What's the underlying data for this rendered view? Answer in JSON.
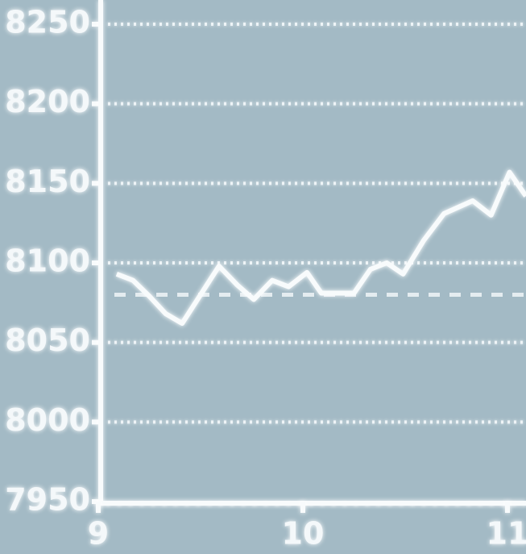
{
  "chart_data": {
    "type": "line",
    "x": [
      9.09,
      9.17,
      9.25,
      9.33,
      9.41,
      9.48,
      9.59,
      9.68,
      9.76,
      9.85,
      9.93,
      10.02,
      10.09,
      10.25,
      10.33,
      10.41,
      10.49,
      10.59,
      10.69,
      10.83,
      10.92,
      11.01,
      11.09
    ],
    "series": [
      {
        "color": "#f8fbfc",
        "values": [
          8093,
          8089,
          8079,
          8068,
          8062,
          8076,
          8098,
          8086,
          8077,
          8089,
          8085,
          8094,
          8081,
          8081,
          8096,
          8100,
          8093,
          8114,
          8131,
          8139,
          8130,
          8157,
          8142
        ]
      }
    ],
    "hline": 8080,
    "xlim": [
      9,
      11.1
    ],
    "xticks": [
      9,
      10,
      11
    ],
    "ylim": [
      7950,
      8250
    ],
    "yticks": [
      7950,
      8000,
      8050,
      8100,
      8150,
      8200,
      8250
    ],
    "grid": true
  }
}
